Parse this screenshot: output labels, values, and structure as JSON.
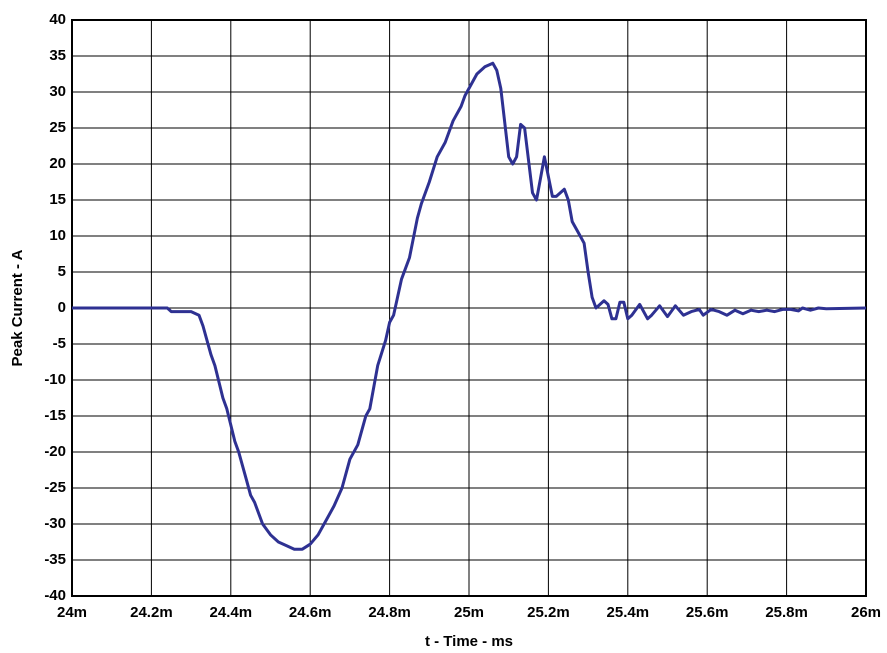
{
  "chart_data": {
    "type": "line",
    "xlabel": "t - Time - ms",
    "ylabel": "Peak Current - A",
    "x": [
      24.0,
      24.24,
      24.25,
      24.3,
      24.32,
      24.33,
      24.35,
      24.36,
      24.38,
      24.39,
      24.41,
      24.42,
      24.44,
      24.45,
      24.46,
      24.48,
      24.5,
      24.52,
      24.54,
      24.56,
      24.58,
      24.6,
      24.62,
      24.64,
      24.66,
      24.68,
      24.7,
      24.72,
      24.74,
      24.75,
      24.77,
      24.79,
      24.8,
      24.81,
      24.83,
      24.85,
      24.87,
      24.88,
      24.9,
      24.92,
      24.94,
      24.96,
      24.98,
      24.99,
      25.0,
      25.02,
      25.04,
      25.06,
      25.07,
      25.08,
      25.1,
      25.11,
      25.12,
      25.13,
      25.14,
      25.16,
      25.17,
      25.18,
      25.19,
      25.21,
      25.22,
      25.24,
      25.25,
      25.26,
      25.28,
      25.29,
      25.3,
      25.31,
      25.32,
      25.33,
      25.34,
      25.35,
      25.36,
      25.37,
      25.38,
      25.39,
      25.4,
      25.41,
      25.43,
      25.45,
      25.46,
      25.48,
      25.5,
      25.52,
      25.54,
      25.56,
      25.58,
      25.59,
      25.61,
      25.63,
      25.65,
      25.67,
      25.69,
      25.71,
      25.73,
      25.75,
      25.77,
      25.79,
      25.81,
      25.83,
      25.84,
      25.86,
      25.88,
      25.9,
      26.0
    ],
    "values": [
      0,
      0,
      -0.5,
      -0.5,
      -1,
      -2.5,
      -6.5,
      -8,
      -12.5,
      -14,
      -18.5,
      -20,
      -24,
      -26,
      -27,
      -30,
      -31.5,
      -32.5,
      -33,
      -33.5,
      -33.5,
      -32.8,
      -31.5,
      -29.5,
      -27.5,
      -25,
      -21,
      -19,
      -15,
      -14,
      -8,
      -4.5,
      -2,
      -1,
      4,
      7,
      12.5,
      14.5,
      17.5,
      21,
      23,
      26,
      28,
      29.5,
      30.5,
      32.5,
      33.5,
      34,
      33,
      30.5,
      21,
      20,
      21,
      25.5,
      25,
      16,
      15,
      18,
      21,
      15.5,
      15.5,
      16.5,
      15,
      12,
      10,
      9,
      5,
      1.5,
      0,
      0.5,
      1,
      0.5,
      -1.5,
      -1.5,
      0.8,
      0.8,
      -1.5,
      -1,
      0.5,
      -1.5,
      -1,
      0.3,
      -1.2,
      0.3,
      -1,
      -0.5,
      -0.2,
      -1,
      -0.2,
      -0.5,
      -1,
      -0.3,
      -0.8,
      -0.3,
      -0.5,
      -0.3,
      -0.5,
      -0.2,
      -0.2,
      -0.4,
      0,
      -0.3,
      0,
      -0.1,
      0
    ],
    "color": "#2e3192",
    "xlim": [
      24,
      26
    ],
    "xticks": [
      {
        "value": 24,
        "label": "24m"
      },
      {
        "value": 24.2,
        "label": "24.2m"
      },
      {
        "value": 24.4,
        "label": "24.4m"
      },
      {
        "value": 24.6,
        "label": "24.6m"
      },
      {
        "value": 24.8,
        "label": "24.8m"
      },
      {
        "value": 25,
        "label": "25m"
      },
      {
        "value": 25.2,
        "label": "25.2m"
      },
      {
        "value": 25.4,
        "label": "25.4m"
      },
      {
        "value": 25.6,
        "label": "25.6m"
      },
      {
        "value": 25.8,
        "label": "25.8m"
      },
      {
        "value": 26,
        "label": "26m"
      }
    ],
    "ylim": [
      -40,
      40
    ],
    "yticks": [
      -40,
      -35,
      -30,
      -25,
      -20,
      -15,
      -10,
      -5,
      0,
      5,
      10,
      15,
      20,
      25,
      30,
      35,
      40
    ],
    "grid": true
  }
}
